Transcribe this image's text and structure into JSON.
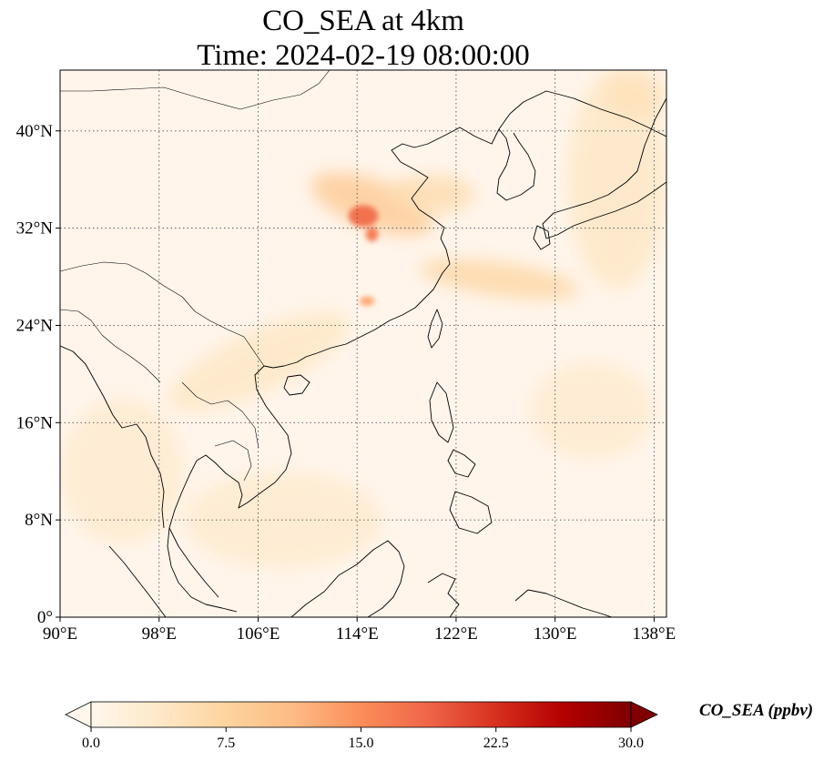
{
  "title": {
    "line1": "CO_SEA at 4km",
    "line2": "Time: 2024-02-19 08:00:00"
  },
  "map": {
    "lon_range": [
      90,
      139
    ],
    "lat_range": [
      0,
      45
    ],
    "lon_ticks": [
      {
        "value": 90,
        "label": "90°E"
      },
      {
        "value": 98,
        "label": "98°E"
      },
      {
        "value": 106,
        "label": "106°E"
      },
      {
        "value": 114,
        "label": "114°E"
      },
      {
        "value": 122,
        "label": "122°E"
      },
      {
        "value": 130,
        "label": "130°E"
      },
      {
        "value": 138,
        "label": "138°E"
      }
    ],
    "lat_ticks": [
      {
        "value": 0,
        "label": "0°"
      },
      {
        "value": 8,
        "label": "8°N"
      },
      {
        "value": 16,
        "label": "16°N"
      },
      {
        "value": 24,
        "label": "24°N"
      },
      {
        "value": 32,
        "label": "32°N"
      },
      {
        "value": 40,
        "label": "40°N"
      }
    ],
    "gridlines": "dotted",
    "background_color": "#fff5eb",
    "coastline_color": "#000000",
    "plumes": [
      {
        "lon": 115.2,
        "lat": 34.0,
        "rx": 5.2,
        "ry": 2.0,
        "value": 9,
        "rotate": 20
      },
      {
        "lon": 114.5,
        "lat": 33.0,
        "rx": 1.2,
        "ry": 0.9,
        "value": 18,
        "rotate": 0
      },
      {
        "lon": 115.2,
        "lat": 31.5,
        "rx": 0.5,
        "ry": 0.6,
        "value": 17,
        "rotate": 0
      },
      {
        "lon": 114.8,
        "lat": 26.0,
        "rx": 0.6,
        "ry": 0.4,
        "value": 13,
        "rotate": 0
      },
      {
        "lon": 120.0,
        "lat": 34.8,
        "rx": 3.5,
        "ry": 1.6,
        "value": 6,
        "rotate": 0
      },
      {
        "lon": 125.5,
        "lat": 27.8,
        "rx": 6.5,
        "ry": 1.4,
        "value": 7,
        "rotate": 8
      },
      {
        "lon": 135.0,
        "lat": 36.0,
        "rx": 4.0,
        "ry": 9.0,
        "value": 4,
        "rotate": 0
      },
      {
        "lon": 136.5,
        "lat": 43.0,
        "rx": 2.5,
        "ry": 2.0,
        "value": 5,
        "rotate": 0
      },
      {
        "lon": 106.0,
        "lat": 21.0,
        "rx": 8.0,
        "ry": 2.5,
        "value": 4,
        "rotate": -25
      },
      {
        "lon": 95.0,
        "lat": 12.0,
        "rx": 5.0,
        "ry": 6.0,
        "value": 3,
        "rotate": 0
      },
      {
        "lon": 108.0,
        "lat": 8.0,
        "rx": 8.0,
        "ry": 4.0,
        "value": 3,
        "rotate": 0
      },
      {
        "lon": 133.0,
        "lat": 17.0,
        "rx": 5.0,
        "ry": 4.0,
        "value": 3,
        "rotate": 0
      }
    ]
  },
  "colorbar": {
    "title": "CO_SEA (ppbv)",
    "min": 0,
    "max": 30,
    "ticks": [
      {
        "value": 0,
        "label": "0.0"
      },
      {
        "value": 7.5,
        "label": "7.5"
      },
      {
        "value": 15,
        "label": "15.0"
      },
      {
        "value": 22.5,
        "label": "22.5"
      },
      {
        "value": 30,
        "label": "30.0"
      }
    ],
    "colormap": "OrRd",
    "stops": [
      "#fff7ec",
      "#fee8c8",
      "#fdd49e",
      "#fdbb84",
      "#fc8d59",
      "#ef6548",
      "#d7301f",
      "#b30000",
      "#7f0000"
    ],
    "extend": "both"
  }
}
